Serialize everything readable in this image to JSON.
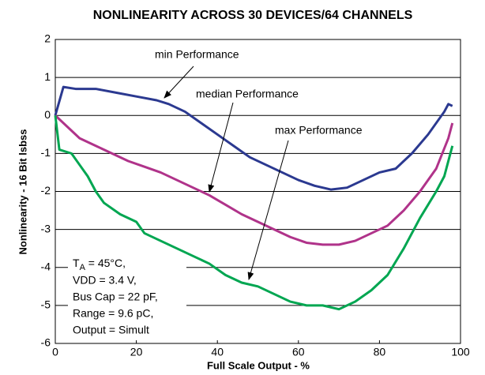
{
  "chart_data": {
    "type": "line",
    "title": "NONLINEARITY ACROSS 30 DEVICES/64 CHANNELS",
    "x_label": "Full Scale Output - %",
    "y_label": "Nonlinearity - 16 Bit lsbss",
    "xlim": [
      0,
      100
    ],
    "xticks": [
      0,
      20,
      40,
      60,
      80,
      100
    ],
    "ylim": [
      -6,
      2
    ],
    "yticks": [
      -6,
      -5,
      -4,
      -3,
      -2,
      -1,
      0,
      1,
      2
    ],
    "grid": true,
    "series": [
      {
        "name": "min Performance",
        "color": "#2b3990",
        "x": [
          0,
          2,
          5,
          10,
          15,
          20,
          25,
          28,
          32,
          36,
          40,
          44,
          48,
          52,
          56,
          60,
          64,
          68,
          72,
          76,
          80,
          84,
          88,
          92,
          96,
          97,
          98
        ],
        "values": [
          0,
          0.75,
          0.7,
          0.7,
          0.6,
          0.5,
          0.4,
          0.3,
          0.1,
          -0.2,
          -0.5,
          -0.8,
          -1.1,
          -1.3,
          -1.5,
          -1.7,
          -1.85,
          -1.95,
          -1.9,
          -1.7,
          -1.5,
          -1.4,
          -1.0,
          -0.5,
          0.1,
          0.3,
          0.25
        ]
      },
      {
        "name": "median Performance",
        "color": "#b0338a",
        "x": [
          0,
          2,
          4,
          6,
          10,
          14,
          18,
          22,
          26,
          30,
          34,
          38,
          42,
          46,
          50,
          54,
          58,
          62,
          66,
          70,
          74,
          78,
          82,
          86,
          90,
          94,
          97,
          98
        ],
        "values": [
          0,
          -0.2,
          -0.4,
          -0.6,
          -0.8,
          -1.0,
          -1.2,
          -1.35,
          -1.5,
          -1.7,
          -1.9,
          -2.1,
          -2.35,
          -2.6,
          -2.8,
          -3.0,
          -3.2,
          -3.35,
          -3.4,
          -3.4,
          -3.3,
          -3.1,
          -2.9,
          -2.5,
          -2.0,
          -1.4,
          -0.6,
          -0.2
        ]
      },
      {
        "name": "max Performance",
        "color": "#00a651",
        "x": [
          0,
          1,
          4,
          6,
          8,
          10,
          12,
          16,
          20,
          22,
          26,
          30,
          34,
          38,
          42,
          46,
          50,
          54,
          58,
          62,
          66,
          70,
          74,
          78,
          82,
          86,
          90,
          94,
          96,
          98
        ],
        "values": [
          0,
          -0.9,
          -1.0,
          -1.3,
          -1.6,
          -2.0,
          -2.3,
          -2.6,
          -2.8,
          -3.1,
          -3.3,
          -3.5,
          -3.7,
          -3.9,
          -4.2,
          -4.4,
          -4.5,
          -4.7,
          -4.9,
          -5.0,
          -5.0,
          -5.1,
          -4.9,
          -4.6,
          -4.2,
          -3.5,
          -2.7,
          -2.0,
          -1.6,
          -0.8
        ]
      }
    ],
    "conditions": [
      "TA = 45°C,",
      "VDD = 3.4 V,",
      "Bus Cap = 22 pF,",
      "Range = 9.6 pC,",
      "Output = Simult"
    ]
  }
}
